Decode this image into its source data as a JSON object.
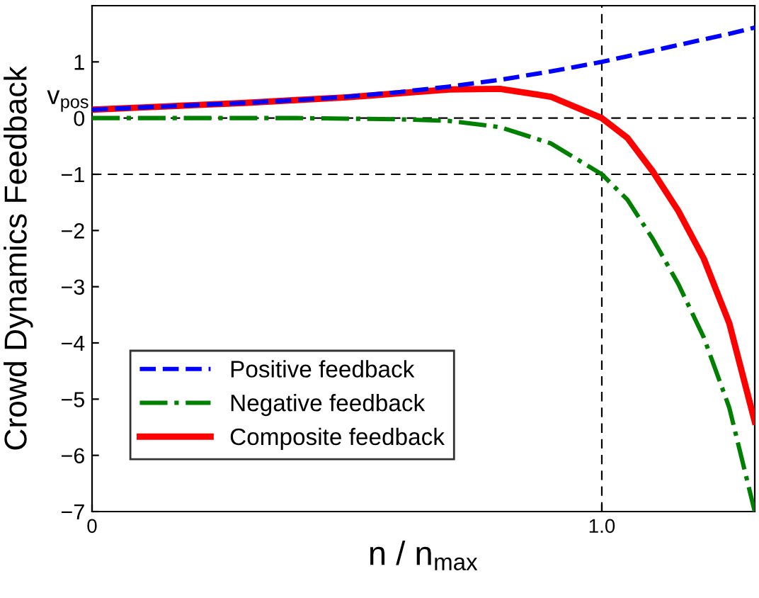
{
  "chart_data": {
    "type": "line",
    "xlabel": "n / n$_{max}$",
    "ylabel": "Crowd Dynamics Feedback",
    "annotations": [
      "v$_{pos}$"
    ],
    "xlim": [
      0,
      1.3
    ],
    "ylim": [
      -7,
      2
    ],
    "xticks": [
      {
        "value": 0,
        "label": "0"
      },
      {
        "value": 1.0,
        "label": "1.0"
      }
    ],
    "yticks": [
      {
        "value": -7,
        "label": "−7"
      },
      {
        "value": -6,
        "label": "−6"
      },
      {
        "value": -5,
        "label": "−5"
      },
      {
        "value": -4,
        "label": "−4"
      },
      {
        "value": -3,
        "label": "−3"
      },
      {
        "value": -2,
        "label": "−2"
      },
      {
        "value": -1,
        "label": "−1"
      },
      0,
      1
    ],
    "x": [
      0,
      0.1,
      0.2,
      0.3,
      0.4,
      0.5,
      0.6,
      0.7,
      0.8,
      0.9,
      1.0,
      1.05,
      1.1,
      1.15,
      1.2,
      1.25,
      1.3
    ],
    "series": [
      {
        "name": "Positive feedback",
        "color": "#0000ff",
        "line_style": "dashed",
        "values": [
          0.15,
          0.19,
          0.23,
          0.27,
          0.32,
          0.38,
          0.46,
          0.56,
          0.68,
          0.83,
          1.0,
          1.1,
          1.2,
          1.3,
          1.4,
          1.5,
          1.61
        ]
      },
      {
        "name": "Negative feedback",
        "color": "#008000",
        "line_style": "dashdot",
        "values": [
          0,
          0,
          0,
          0,
          0,
          -0.01,
          -0.02,
          -0.05,
          -0.16,
          -0.45,
          -1.0,
          -1.45,
          -2.15,
          -2.95,
          -3.9,
          -5.15,
          -7.0
        ]
      },
      {
        "name": "Composite feedback",
        "color": "#ff0000",
        "line_style": "solid",
        "values": [
          0.15,
          0.19,
          0.23,
          0.27,
          0.32,
          0.37,
          0.44,
          0.51,
          0.52,
          0.38,
          0,
          -0.35,
          -0.95,
          -1.65,
          -2.5,
          -3.65,
          -5.4
        ]
      }
    ],
    "ref_lines": [
      {
        "axis": "y",
        "value": 0,
        "color": "#000000",
        "line_style": "dashed"
      },
      {
        "axis": "y",
        "value": -1,
        "color": "#000000",
        "line_style": "dashed"
      },
      {
        "axis": "x",
        "value": 1.0,
        "color": "#000000",
        "line_style": "dashed"
      }
    ],
    "legend": "bottom left",
    "grid": false
  }
}
